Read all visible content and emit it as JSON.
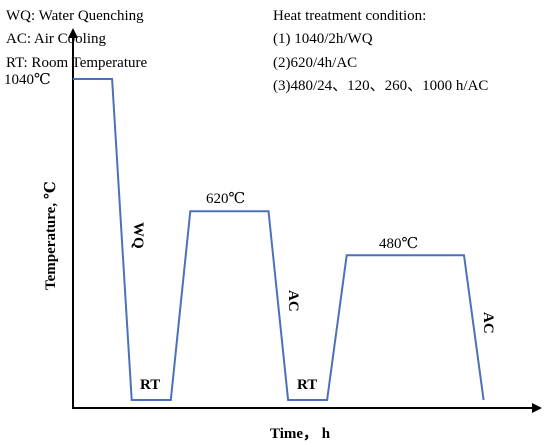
{
  "legend": {
    "left": [
      "WQ: Water Quenching",
      "AC: Air Cooling",
      "RT: Room Temperature"
    ],
    "right_title": "Heat treatment condition:",
    "right": [
      "(1) 1040/2h/WQ",
      "(2)620/4h/AC",
      "(3)480/24、120、260、1000 h/AC"
    ]
  },
  "axes": {
    "x_label": "Time， h",
    "y_label": "Temperature, ℃"
  },
  "labels": {
    "t1040": "1040℃",
    "t620": "620℃",
    "t480": "480℃",
    "wq": "WQ",
    "rt1": "RT",
    "rt2": "RT",
    "ac1": "AC",
    "ac2": "AC"
  },
  "colors": {
    "profile": "#4a72b8",
    "axis": "#000000"
  },
  "chart_data": {
    "type": "line",
    "series": [
      {
        "x": [
          0,
          1,
          1.5,
          2.5,
          3,
          5,
          5.5,
          6.5,
          7,
          10,
          10.5
        ],
        "y": [
          1040,
          1040,
          20,
          20,
          620,
          620,
          20,
          20,
          480,
          480,
          20
        ]
      }
    ],
    "xlabel": "Time， h",
    "ylabel": "Temperature, ℃"
  }
}
